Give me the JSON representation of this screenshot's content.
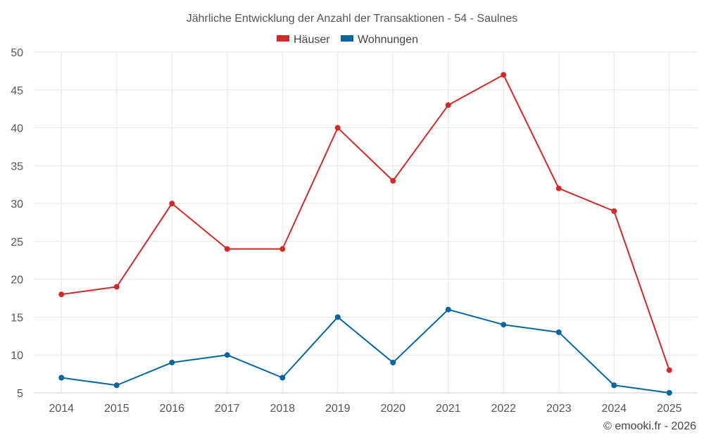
{
  "chart_data": {
    "type": "line",
    "title": "Jährliche Entwicklung der Anzahl der Transaktionen - 54 - Saulnes",
    "categories": [
      "2014",
      "2015",
      "2016",
      "2017",
      "2018",
      "2019",
      "2020",
      "2021",
      "2022",
      "2023",
      "2024",
      "2025"
    ],
    "series": [
      {
        "name": "Häuser",
        "color": "#d62728",
        "values": [
          18,
          19,
          30,
          24,
          24,
          40,
          33,
          43,
          47,
          32,
          29,
          8
        ]
      },
      {
        "name": "Wohnungen",
        "color": "#0565a0",
        "values": [
          7,
          6,
          9,
          10,
          7,
          15,
          9,
          16,
          14,
          13,
          6,
          5
        ]
      }
    ],
    "ylim": [
      5,
      50
    ],
    "yticks": [
      5,
      10,
      15,
      20,
      25,
      30,
      35,
      40,
      45,
      50
    ],
    "xlabel": "",
    "ylabel": "",
    "grid": true,
    "legend": "top-center"
  },
  "credit": "© emooki.fr - 2026"
}
